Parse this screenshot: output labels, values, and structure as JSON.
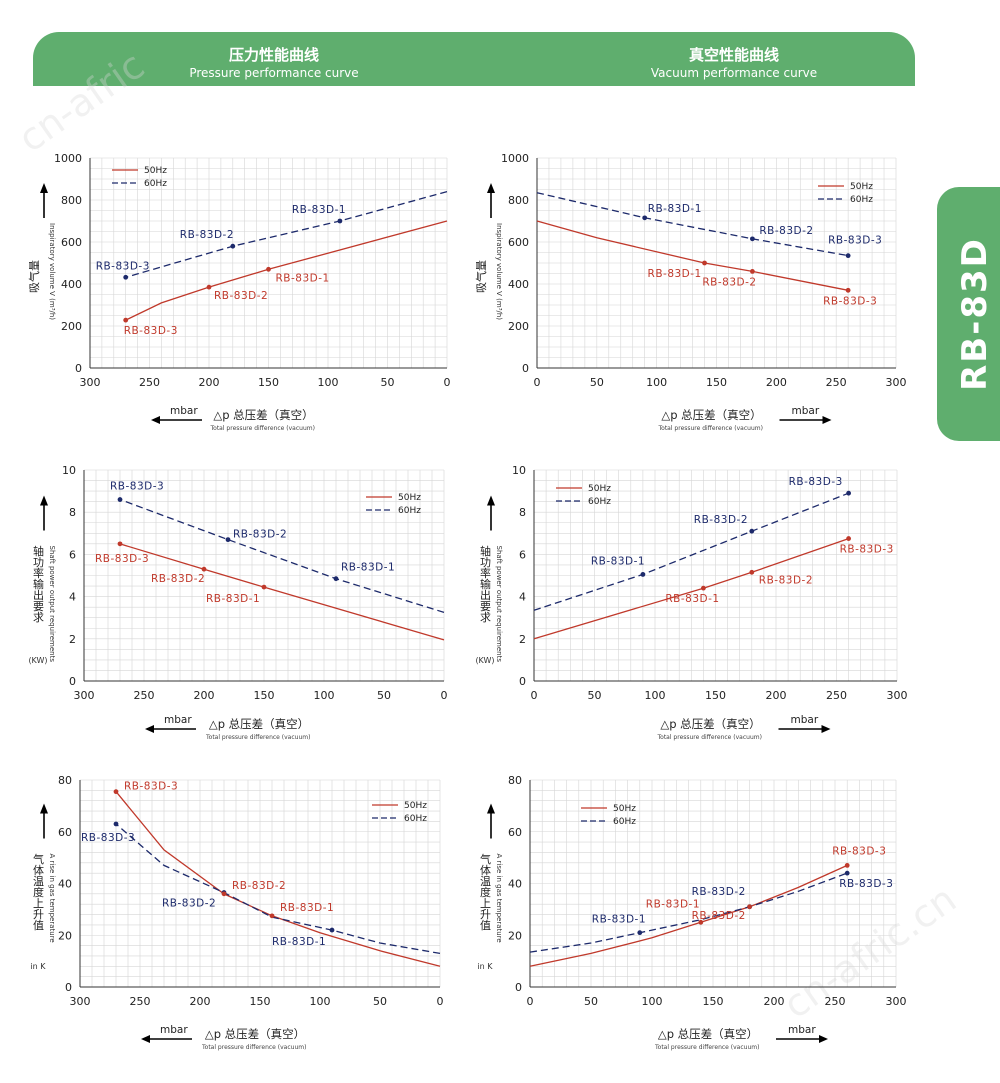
{
  "header": {
    "left_title": "压力性能曲线",
    "left_subtitle": "Pressure performance curve",
    "right_title": "真空性能曲线",
    "right_subtitle": "Vacuum performance curve"
  },
  "side_tab": {
    "label": "RB-83D"
  },
  "watermarks": [
    "cn-afric",
    "cn-afric.cn"
  ],
  "colors": {
    "s50": "#c0392b",
    "s60": "#1d2a6b",
    "banner": "#5fae6e",
    "grid": "#d6d6d6"
  },
  "chart_data": [
    {
      "id": "pressure-volume",
      "type": "line",
      "reversed_x": true,
      "xlim": [
        0,
        300
      ],
      "ylim": [
        0,
        1000
      ],
      "xticks": [
        "0",
        "50",
        "100",
        "150",
        "200",
        "250",
        "300"
      ],
      "yticks": [
        "0",
        "200",
        "400",
        "600",
        "800",
        "1000"
      ],
      "ylabel_zh": "吸气量",
      "ylabel_en": "Inspiratory volume V (m³/h)",
      "xlabel_prefix": "△p",
      "xlabel_zh": "总压差（真空）",
      "xlabel_en": "Total pressure difference (vacuum)",
      "unit": "mbar",
      "legend": [
        "50Hz",
        "60Hz"
      ],
      "series": [
        {
          "name": "50Hz",
          "x": [
            0,
            150,
            200,
            240,
            270
          ],
          "y": [
            700,
            470,
            385,
            310,
            228
          ]
        },
        {
          "name": "60Hz",
          "x": [
            0,
            90,
            180,
            270
          ],
          "y": [
            840,
            700,
            580,
            432
          ]
        }
      ],
      "points": [
        {
          "series": 1,
          "x": 90,
          "y": 700,
          "label": "RB-83D-1"
        },
        {
          "series": 1,
          "x": 180,
          "y": 580,
          "label": "RB-83D-2"
        },
        {
          "series": 1,
          "x": 270,
          "y": 432,
          "label": "RB-83D-3"
        },
        {
          "series": 0,
          "x": 150,
          "y": 470,
          "label": "RB-83D-1"
        },
        {
          "series": 0,
          "x": 200,
          "y": 385,
          "label": "RB-83D-2"
        },
        {
          "series": 0,
          "x": 270,
          "y": 228,
          "label": "RB-83D-3"
        }
      ]
    },
    {
      "id": "vacuum-volume",
      "type": "line",
      "reversed_x": false,
      "xlim": [
        0,
        300
      ],
      "ylim": [
        0,
        1000
      ],
      "xticks": [
        "0",
        "50",
        "100",
        "150",
        "200",
        "250",
        "300"
      ],
      "yticks": [
        "0",
        "200",
        "400",
        "600",
        "800",
        "1000"
      ],
      "ylabel_zh": "吸气量",
      "ylabel_en": "Inspiratory volume V (m³/h)",
      "xlabel_prefix": "△p",
      "xlabel_zh": "总压差（真空）",
      "xlabel_en": "Total pressure difference (vacuum)",
      "unit": "mbar",
      "legend": [
        "50Hz",
        "60Hz"
      ],
      "series": [
        {
          "name": "50Hz",
          "x": [
            0,
            50,
            140,
            180,
            260
          ],
          "y": [
            700,
            620,
            500,
            460,
            370
          ]
        },
        {
          "name": "60Hz",
          "x": [
            0,
            90,
            180,
            260
          ],
          "y": [
            835,
            715,
            615,
            535
          ]
        }
      ],
      "points": [
        {
          "series": 1,
          "x": 90,
          "y": 715,
          "label": "RB-83D-1"
        },
        {
          "series": 1,
          "x": 180,
          "y": 615,
          "label": "RB-83D-2"
        },
        {
          "series": 1,
          "x": 260,
          "y": 535,
          "label": "RB-83D-3"
        },
        {
          "series": 0,
          "x": 140,
          "y": 500,
          "label": "RB-83D-1"
        },
        {
          "series": 0,
          "x": 180,
          "y": 460,
          "label": "RB-83D-2"
        },
        {
          "series": 0,
          "x": 260,
          "y": 370,
          "label": "RB-83D-3"
        }
      ]
    },
    {
      "id": "pressure-power",
      "type": "line",
      "reversed_x": true,
      "xlim": [
        0,
        300
      ],
      "ylim": [
        0,
        10
      ],
      "xticks": [
        "0",
        "50",
        "100",
        "150",
        "200",
        "250",
        "300"
      ],
      "yticks": [
        "0",
        "2",
        "4",
        "6",
        "8",
        "10"
      ],
      "ylabel_zh": "轴功率输出要求",
      "ylabel_en": "Shaft power output requirements",
      "ylabel_unit": "(KW)",
      "xlabel_prefix": "△p",
      "xlabel_zh": "总压差（真空）",
      "xlabel_en": "Total pressure difference (vacuum)",
      "unit": "mbar",
      "legend": [
        "50Hz",
        "60Hz"
      ],
      "series": [
        {
          "name": "50Hz",
          "x": [
            0,
            150,
            200,
            270
          ],
          "y": [
            1.95,
            4.45,
            5.3,
            6.5
          ]
        },
        {
          "name": "60Hz",
          "x": [
            0,
            90,
            180,
            270
          ],
          "y": [
            3.25,
            4.85,
            6.7,
            8.6
          ]
        }
      ],
      "points": [
        {
          "series": 1,
          "x": 90,
          "y": 4.85,
          "label": "RB-83D-1"
        },
        {
          "series": 1,
          "x": 180,
          "y": 6.7,
          "label": "RB-83D-2"
        },
        {
          "series": 1,
          "x": 270,
          "y": 8.6,
          "label": "RB-83D-3"
        },
        {
          "series": 0,
          "x": 150,
          "y": 4.45,
          "label": "RB-83D-1"
        },
        {
          "series": 0,
          "x": 200,
          "y": 5.3,
          "label": "RB-83D-2"
        },
        {
          "series": 0,
          "x": 270,
          "y": 6.5,
          "label": "RB-83D-3"
        }
      ]
    },
    {
      "id": "vacuum-power",
      "type": "line",
      "reversed_x": false,
      "xlim": [
        0,
        300
      ],
      "ylim": [
        0,
        10
      ],
      "xticks": [
        "0",
        "50",
        "100",
        "150",
        "200",
        "250",
        "300"
      ],
      "yticks": [
        "0",
        "2",
        "4",
        "6",
        "8",
        "10"
      ],
      "ylabel_zh": "轴功率输出要求",
      "ylabel_en": "Shaft power output requirements",
      "ylabel_unit": "(KW)",
      "xlabel_prefix": "△p",
      "xlabel_zh": "总压差（真空）",
      "xlabel_en": "Total pressure difference (vacuum)",
      "unit": "mbar",
      "legend": [
        "50Hz",
        "60Hz"
      ],
      "series": [
        {
          "name": "50Hz",
          "x": [
            0,
            140,
            180,
            260
          ],
          "y": [
            2.0,
            4.4,
            5.15,
            6.75
          ]
        },
        {
          "name": "60Hz",
          "x": [
            0,
            90,
            180,
            260
          ],
          "y": [
            3.35,
            5.05,
            7.1,
            8.9
          ]
        }
      ],
      "points": [
        {
          "series": 1,
          "x": 90,
          "y": 5.05,
          "label": "RB-83D-1"
        },
        {
          "series": 1,
          "x": 180,
          "y": 7.1,
          "label": "RB-83D-2"
        },
        {
          "series": 1,
          "x": 260,
          "y": 8.9,
          "label": "RB-83D-3"
        },
        {
          "series": 0,
          "x": 140,
          "y": 4.4,
          "label": "RB-83D-1"
        },
        {
          "series": 0,
          "x": 180,
          "y": 5.15,
          "label": "RB-83D-2"
        },
        {
          "series": 0,
          "x": 260,
          "y": 6.75,
          "label": "RB-83D-3"
        }
      ]
    },
    {
      "id": "pressure-temperature",
      "type": "line",
      "reversed_x": true,
      "xlim": [
        0,
        300
      ],
      "ylim": [
        0,
        80
      ],
      "xticks": [
        "0",
        "50",
        "100",
        "150",
        "200",
        "250",
        "300"
      ],
      "yticks": [
        "0",
        "20",
        "40",
        "60",
        "80"
      ],
      "ylabel_zh": "气体温度上升值",
      "ylabel_en": "A rise in gas temperature",
      "ylabel_unit": "in K",
      "xlabel_prefix": "△p",
      "xlabel_zh": "总压差（真空）",
      "xlabel_en": "Total pressure difference (vacuum)",
      "unit": "mbar",
      "legend": [
        "50Hz",
        "60Hz"
      ],
      "series": [
        {
          "name": "50Hz",
          "x": [
            0,
            50,
            100,
            140,
            180,
            230,
            270
          ],
          "y": [
            8,
            14,
            21,
            27.5,
            36,
            53,
            75.5
          ]
        },
        {
          "name": "60Hz",
          "x": [
            0,
            50,
            90,
            140,
            180,
            230,
            270
          ],
          "y": [
            13,
            17,
            22,
            27,
            36.5,
            47,
            63
          ]
        }
      ],
      "points": [
        {
          "series": 1,
          "x": 90,
          "y": 22,
          "label": "RB-83D-1"
        },
        {
          "series": 1,
          "x": 180,
          "y": 36.5,
          "label": "RB-83D-2"
        },
        {
          "series": 1,
          "x": 270,
          "y": 63,
          "label": "RB-83D-3"
        },
        {
          "series": 0,
          "x": 140,
          "y": 27.5,
          "label": "RB-83D-1"
        },
        {
          "series": 0,
          "x": 180,
          "y": 36,
          "label": "RB-83D-2"
        },
        {
          "series": 0,
          "x": 270,
          "y": 75.5,
          "label": "RB-83D-3"
        }
      ]
    },
    {
      "id": "vacuum-temperature",
      "type": "line",
      "reversed_x": false,
      "xlim": [
        0,
        300
      ],
      "ylim": [
        0,
        80
      ],
      "xticks": [
        "0",
        "50",
        "100",
        "150",
        "200",
        "250",
        "300"
      ],
      "yticks": [
        "0",
        "20",
        "40",
        "60",
        "80"
      ],
      "ylabel_zh": "气体温度上升值",
      "ylabel_en": "A rise in gas temperature",
      "ylabel_unit": "in K",
      "xlabel_prefix": "△p",
      "xlabel_zh": "总压差（真空）",
      "xlabel_en": "Total pressure difference (vacuum)",
      "unit": "mbar",
      "legend": [
        "50Hz",
        "60Hz"
      ],
      "series": [
        {
          "name": "50Hz",
          "x": [
            0,
            50,
            100,
            140,
            180,
            220,
            260
          ],
          "y": [
            8,
            13,
            19,
            25,
            31,
            38.5,
            47
          ]
        },
        {
          "name": "60Hz",
          "x": [
            0,
            50,
            90,
            140,
            180,
            220,
            260
          ],
          "y": [
            13.5,
            17,
            21,
            26,
            31,
            37,
            44
          ]
        }
      ],
      "points": [
        {
          "series": 1,
          "x": 90,
          "y": 21,
          "label": "RB-83D-1"
        },
        {
          "series": 1,
          "x": 180,
          "y": 31,
          "label": "RB-83D-2"
        },
        {
          "series": 1,
          "x": 260,
          "y": 44,
          "label": "RB-83D-3"
        },
        {
          "series": 0,
          "x": 140,
          "y": 25,
          "label": "RB-83D-1"
        },
        {
          "series": 0,
          "x": 180,
          "y": 31,
          "label": "RB-83D-2"
        },
        {
          "series": 0,
          "x": 260,
          "y": 47,
          "label": "RB-83D-3"
        }
      ]
    }
  ]
}
